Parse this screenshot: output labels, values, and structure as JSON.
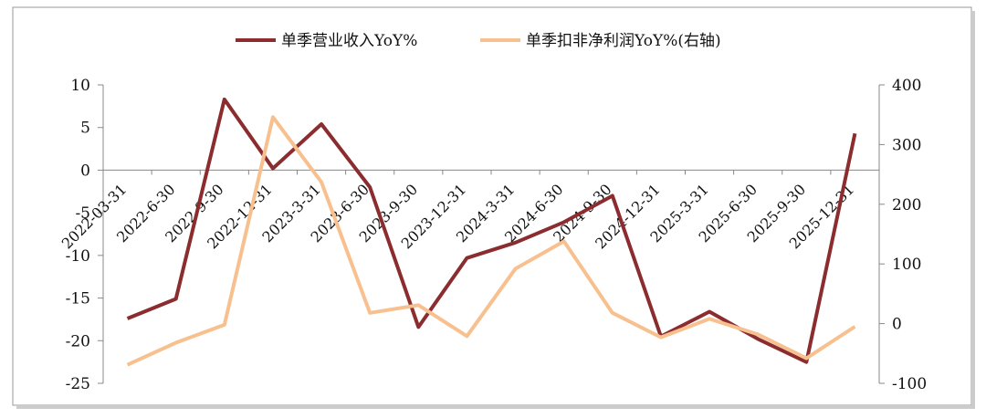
{
  "chart_data": {
    "type": "line",
    "categories": [
      "2022-03-31",
      "2022-6-30",
      "2022-9-30",
      "2022-12-31",
      "2023-3-31",
      "2023-6-30",
      "2023-9-30",
      "2023-12-31",
      "2024-3-31",
      "2024-6-30",
      "2024-9-30",
      "2024-12-31",
      "2025-3-31",
      "2025-6-30",
      "2025-9-30",
      "2025-12-31"
    ],
    "series": [
      {
        "name": "单季营业收入YoY%",
        "color": "#8b2d2f",
        "values": [
          -17.4,
          -15.1,
          8.3,
          0.2,
          5.4,
          -2.0,
          -18.4,
          -10.3,
          -8.5,
          -6.1,
          -3.0,
          -19.5,
          -16.6,
          -19.8,
          -22.5,
          4.3
        ]
      },
      {
        "name": "单季扣非净利润YoY%(右轴)",
        "color": "#f7c08e",
        "axis": "y2",
        "values": [
          -69,
          -32,
          -2,
          346,
          237,
          18,
          31,
          -21,
          92,
          138,
          18,
          -23,
          8,
          -18,
          -58,
          -5
        ]
      }
    ],
    "ylim": [
      -25,
      10
    ],
    "yticks": [
      -25,
      -20,
      -15,
      -10,
      -5,
      0,
      5,
      10
    ],
    "y2lim": [
      -100,
      400
    ],
    "y2ticks": [
      -100,
      0,
      100,
      200,
      300,
      400
    ]
  }
}
